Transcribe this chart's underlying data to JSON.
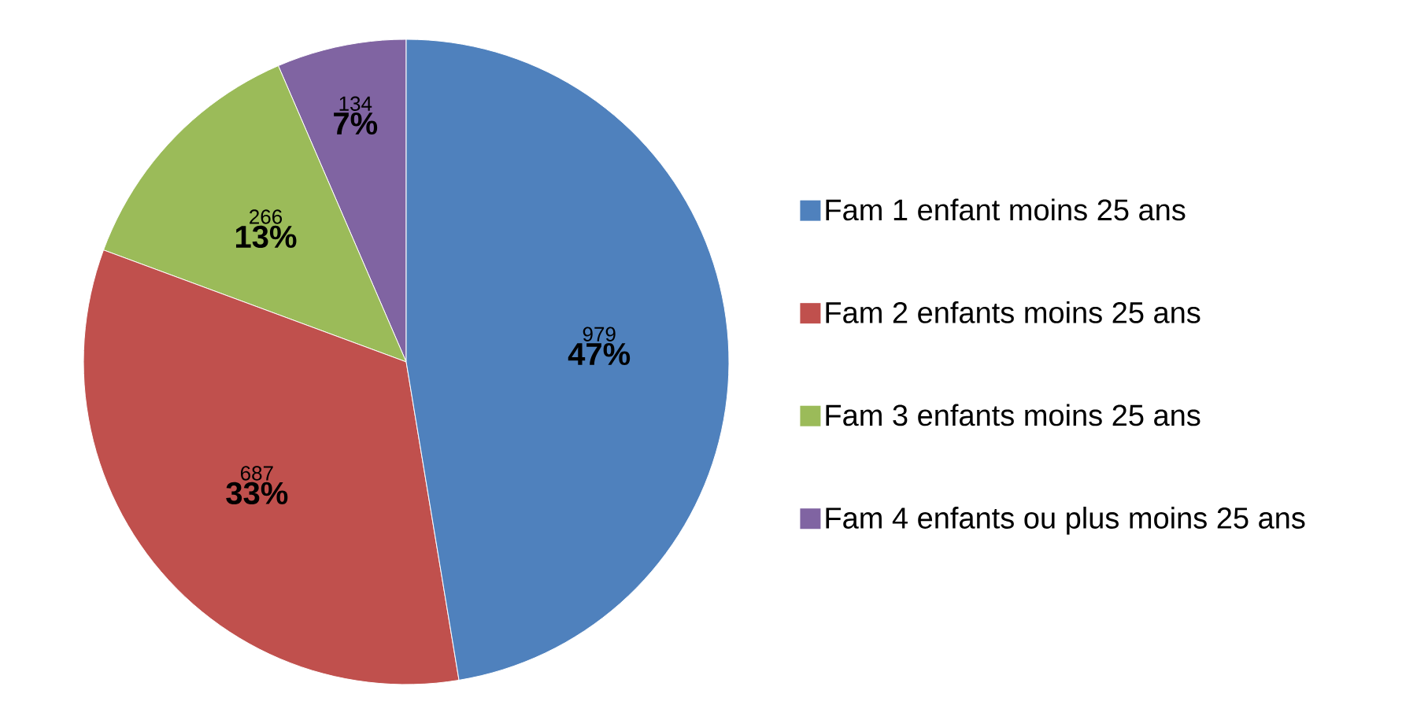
{
  "chart_data": {
    "type": "pie",
    "categories": [
      "Fam 1 enfant moins 25 ans",
      "Fam 2 enfants moins 25 ans",
      "Fam 3 enfants moins 25 ans",
      "Fam 4 enfants ou plus moins 25 ans"
    ],
    "values": [
      979,
      687,
      266,
      134
    ],
    "colors": [
      "#4f81bd",
      "#c0504d",
      "#9bbb59",
      "#8064a2"
    ],
    "value_labels": [
      "979",
      "687",
      "266",
      "134"
    ],
    "annotations": [
      {
        "text": "47%",
        "x": "Fam 1 enfant moins 25 ans"
      },
      {
        "text": "33%",
        "x": "Fam 2 enfants moins 25 ans"
      },
      {
        "text": "13%",
        "x": "Fam 3 enfants moins 25 ans"
      },
      {
        "text": "7%",
        "x": "Fam 4 enfants ou plus moins 25 ans"
      }
    ],
    "legend": "right"
  }
}
